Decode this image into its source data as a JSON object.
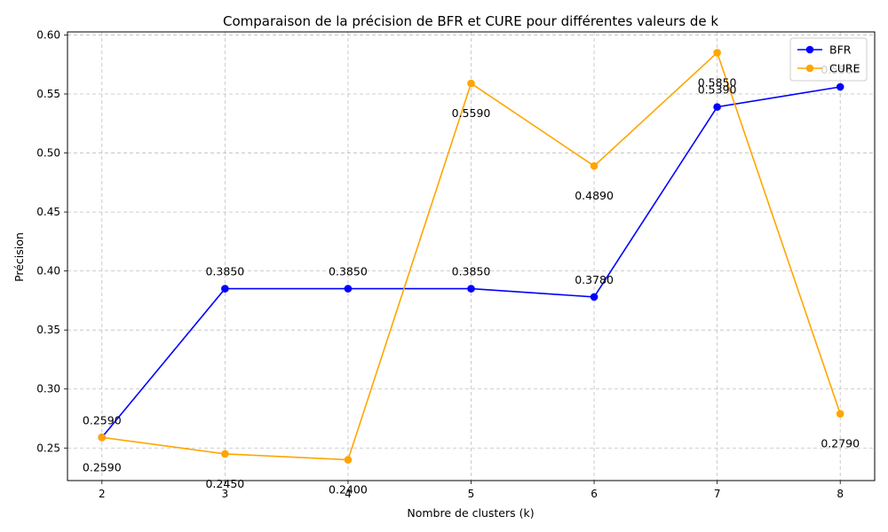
{
  "chart_data": {
    "type": "line",
    "title": "Comparaison de la précision de BFR et CURE pour différentes valeurs de k",
    "xlabel": "Nombre de clusters (k)",
    "ylabel": "Précision",
    "x": [
      2,
      3,
      4,
      5,
      6,
      7,
      8
    ],
    "x_tick_labels": [
      "2",
      "3",
      "4",
      "5",
      "6",
      "7",
      "8"
    ],
    "y_ticks": [
      0.25,
      0.3,
      0.35,
      0.4,
      0.45,
      0.5,
      0.55,
      0.6
    ],
    "y_tick_labels": [
      "0.25",
      "0.30",
      "0.35",
      "0.40",
      "0.45",
      "0.50",
      "0.55",
      "0.60"
    ],
    "xlim": [
      1.72,
      8.28
    ],
    "ylim": [
      0.2224,
      0.6026
    ],
    "grid": true,
    "legend_position": "top-right",
    "series": [
      {
        "name": "BFR",
        "color": "#0000ff",
        "values": [
          0.259,
          0.385,
          0.385,
          0.385,
          0.378,
          0.539,
          0.556
        ],
        "labels": [
          "0.2590",
          "0.3850",
          "0.3850",
          "0.3850",
          "0.3780",
          "0.5390",
          "0.5560"
        ],
        "label_position": "above"
      },
      {
        "name": "CURE",
        "color": "#ffa500",
        "values": [
          0.259,
          0.245,
          0.24,
          0.559,
          0.489,
          0.585,
          0.279
        ],
        "labels": [
          "0.2590",
          "0.2450",
          "0.2400",
          "0.5590",
          "0.4890",
          "0.5850",
          "0.2790"
        ],
        "label_position": "below"
      }
    ]
  }
}
